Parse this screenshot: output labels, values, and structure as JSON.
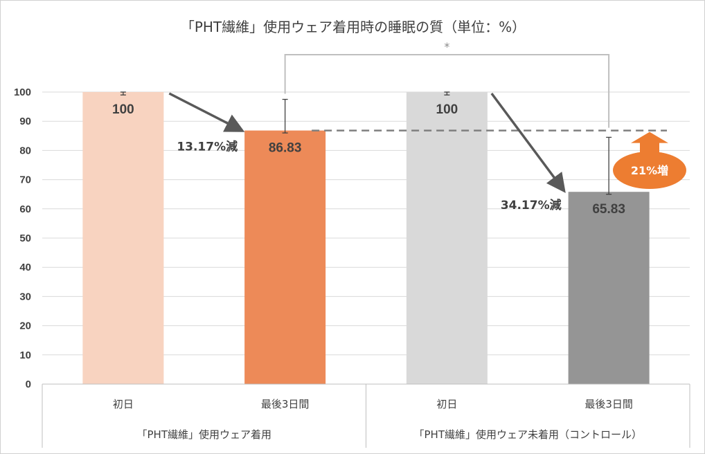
{
  "chart_data": {
    "type": "bar",
    "title": "「PHT繊維」使用ウェア着用時の睡眠の質（単位：%）",
    "ylim": [
      0,
      100
    ],
    "yticks": [
      0,
      10,
      20,
      30,
      40,
      50,
      60,
      70,
      80,
      90,
      100
    ],
    "grid": true,
    "categories": [
      "初日",
      "最後3日間",
      "初日",
      "最後3日間"
    ],
    "groups": [
      {
        "label": "「PHT繊維」使用ウェア着用",
        "categories": [
          "初日",
          "最後3日間"
        ]
      },
      {
        "label": "「PHT繊維」使用ウェア未着用（コントロール）",
        "categories": [
          "初日",
          "最後3日間"
        ]
      }
    ],
    "bars": [
      {
        "category": "初日",
        "value": 100,
        "label": "100",
        "color": "#f8d3c0",
        "err_low": 99,
        "err_high": 100
      },
      {
        "category": "最後3日間",
        "value": 86.83,
        "label": "86.83",
        "color": "#ed8a58",
        "err_low": 86,
        "err_high": 97.5
      },
      {
        "category": "初日",
        "value": 100,
        "label": "100",
        "color": "#d9d9d9",
        "err_low": 99,
        "err_high": 100
      },
      {
        "category": "最後3日間",
        "value": 65.83,
        "label": "65.83",
        "color": "#959595",
        "err_low": 65,
        "err_high": 84.5
      }
    ],
    "annotations": {
      "decrease_1": "13.17%減",
      "decrease_2": "34.17%減",
      "increase": "21%増",
      "significance": "*",
      "reference_line_value": 86.83
    },
    "colors": {
      "increase_badge": "#ed7d31",
      "arrow": "#595959",
      "bracket": "#bfbfbf",
      "reference_line": "#7f7f7f"
    }
  }
}
